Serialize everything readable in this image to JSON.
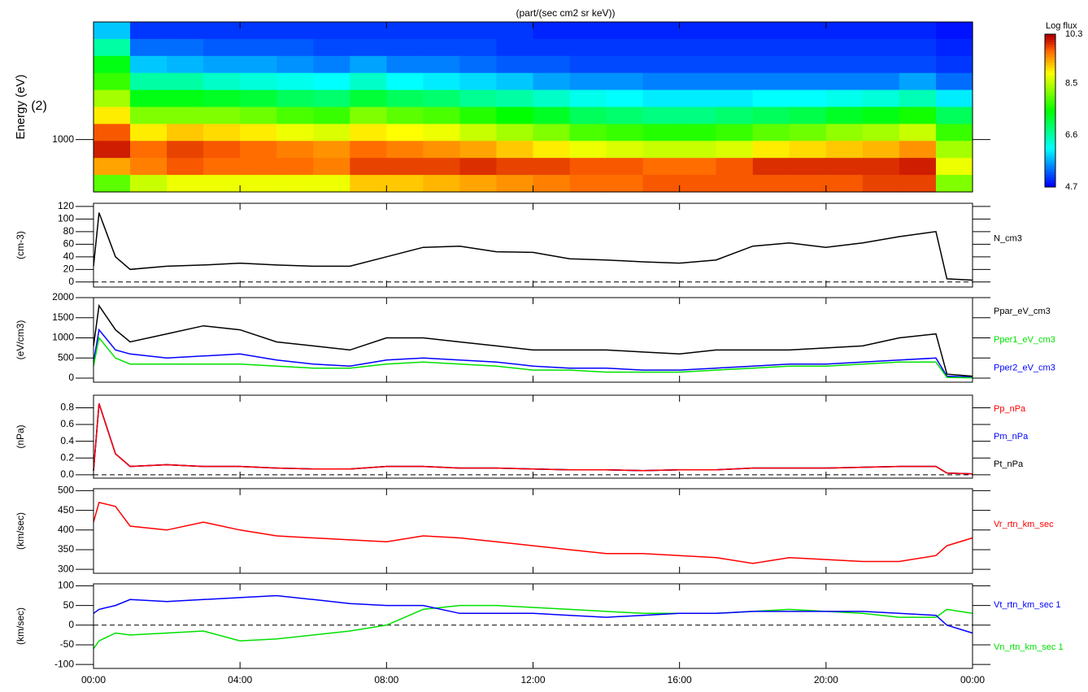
{
  "chart_data": [
    {
      "type": "heatmap",
      "title": "(part/(sec cm2 sr keV))",
      "ylabel": "Energy (eV)",
      "note": "(2)",
      "xlim": [
        0,
        24
      ],
      "ylim": [
        300,
        15000
      ],
      "log_y": true,
      "yticks": [
        1000
      ],
      "colorbar_title": "Log flux",
      "clim": [
        4.7,
        10.3
      ],
      "cticks": [
        4.7,
        6.6,
        8.5,
        10.3
      ],
      "z": [
        [
          5.8,
          5.0,
          5.0,
          5.0,
          5.0,
          5.0,
          5.0,
          5.0,
          5.0,
          5.0,
          5.0,
          5.0,
          4.9,
          4.9,
          4.9,
          4.9,
          4.9,
          4.9,
          4.9,
          4.9,
          4.9,
          4.9,
          4.9,
          4.8
        ],
        [
          6.6,
          5.3,
          5.3,
          5.2,
          5.2,
          5.2,
          5.1,
          5.1,
          5.1,
          5.1,
          5.1,
          5.0,
          5.0,
          5.0,
          5.0,
          5.0,
          5.0,
          5.0,
          5.0,
          5.0,
          5.0,
          5.0,
          5.0,
          4.9
        ],
        [
          7.4,
          5.8,
          5.7,
          5.6,
          5.6,
          5.5,
          5.4,
          5.6,
          5.4,
          5.4,
          5.3,
          5.2,
          5.2,
          5.1,
          5.1,
          5.1,
          5.1,
          5.1,
          5.1,
          5.1,
          5.1,
          5.1,
          5.1,
          5.0
        ],
        [
          7.8,
          6.6,
          6.6,
          6.4,
          6.3,
          6.2,
          6.1,
          6.4,
          6.1,
          6.0,
          5.9,
          5.8,
          5.6,
          5.5,
          5.5,
          5.4,
          5.4,
          5.4,
          5.4,
          5.4,
          5.4,
          5.4,
          5.6,
          5.3
        ],
        [
          8.4,
          7.4,
          7.4,
          7.3,
          7.2,
          7.0,
          6.9,
          7.2,
          7.0,
          6.9,
          6.7,
          6.6,
          6.4,
          6.2,
          6.1,
          6.0,
          6.0,
          6.0,
          6.1,
          6.1,
          6.2,
          6.3,
          6.5,
          6.0
        ],
        [
          9.0,
          8.2,
          8.2,
          8.2,
          8.1,
          7.9,
          7.8,
          8.2,
          8.0,
          7.9,
          7.7,
          7.5,
          7.3,
          7.0,
          6.9,
          6.8,
          6.8,
          6.9,
          7.0,
          7.1,
          7.3,
          7.4,
          7.6,
          7.0
        ],
        [
          9.8,
          9.0,
          9.2,
          9.1,
          9.0,
          8.8,
          8.7,
          9.0,
          8.9,
          8.8,
          8.6,
          8.4,
          8.2,
          7.9,
          7.8,
          7.7,
          7.7,
          7.8,
          8.0,
          8.1,
          8.3,
          8.4,
          8.6,
          7.8
        ],
        [
          10.1,
          9.7,
          9.9,
          9.8,
          9.7,
          9.6,
          9.5,
          9.7,
          9.6,
          9.5,
          9.4,
          9.2,
          9.0,
          8.8,
          8.7,
          8.6,
          8.6,
          8.7,
          9.0,
          9.1,
          9.2,
          9.3,
          9.5,
          8.4
        ],
        [
          9.4,
          9.6,
          9.8,
          9.7,
          9.7,
          9.7,
          9.6,
          9.9,
          9.9,
          9.9,
          10.0,
          9.9,
          9.9,
          9.8,
          9.8,
          9.7,
          9.7,
          9.8,
          10.0,
          10.0,
          10.0,
          10.0,
          10.1,
          8.8
        ],
        [
          8.0,
          8.6,
          8.8,
          8.8,
          8.8,
          8.8,
          8.8,
          9.2,
          9.2,
          9.3,
          9.4,
          9.5,
          9.6,
          9.7,
          9.7,
          9.8,
          9.8,
          9.8,
          9.8,
          9.8,
          9.8,
          9.9,
          9.9,
          8.2
        ]
      ]
    },
    {
      "type": "line",
      "ylabel": "(cm-3)",
      "xlim": [
        0,
        24
      ],
      "ylim": [
        -8,
        125
      ],
      "yticks": [
        0,
        20,
        40,
        60,
        80,
        100,
        120
      ],
      "hline": 0,
      "x": [
        0,
        0.15,
        0.6,
        1,
        2,
        3,
        4,
        5,
        6,
        7,
        8,
        9,
        10,
        11,
        12,
        13,
        14,
        15,
        16,
        17,
        18,
        19,
        20,
        21,
        22,
        23,
        23.3,
        24
      ],
      "series": [
        {
          "name": "N_cm3",
          "color": "#000000",
          "values": [
            25,
            110,
            40,
            20,
            25,
            27,
            30,
            27,
            25,
            25,
            40,
            55,
            57,
            48,
            47,
            37,
            35,
            32,
            30,
            35,
            57,
            62,
            55,
            62,
            72,
            80,
            5,
            3
          ]
        }
      ]
    },
    {
      "type": "line",
      "ylabel": "(eV/cm3)",
      "xlim": [
        0,
        24
      ],
      "ylim": [
        -100,
        2000
      ],
      "yticks": [
        0,
        500,
        1000,
        1500,
        2000
      ],
      "x": [
        0,
        0.15,
        0.6,
        1,
        2,
        3,
        4,
        5,
        6,
        7,
        8,
        9,
        10,
        11,
        12,
        13,
        14,
        15,
        16,
        17,
        18,
        19,
        20,
        21,
        22,
        23,
        23.3,
        24
      ],
      "series": [
        {
          "name": "Ppar_eV_cm3",
          "color": "#000000",
          "values": [
            800,
            1800,
            1200,
            900,
            1100,
            1300,
            1200,
            900,
            800,
            700,
            1000,
            1000,
            900,
            800,
            700,
            700,
            700,
            650,
            600,
            700,
            700,
            700,
            750,
            800,
            1000,
            1100,
            100,
            50
          ]
        },
        {
          "name": "Pper1_eV_cm3",
          "color": "#00e000",
          "values": [
            300,
            1000,
            500,
            350,
            350,
            350,
            350,
            300,
            250,
            250,
            350,
            400,
            350,
            300,
            200,
            200,
            150,
            150,
            150,
            200,
            250,
            300,
            300,
            350,
            400,
            400,
            20,
            10
          ]
        },
        {
          "name": "Pper2_eV_cm3",
          "color": "#0000ff",
          "values": [
            400,
            1200,
            700,
            600,
            500,
            550,
            600,
            450,
            350,
            300,
            450,
            500,
            450,
            400,
            300,
            250,
            250,
            200,
            200,
            250,
            300,
            350,
            350,
            400,
            450,
            500,
            50,
            30
          ]
        }
      ]
    },
    {
      "type": "line",
      "ylabel": "(nPa)",
      "xlim": [
        0,
        24
      ],
      "ylim": [
        -0.04,
        0.95
      ],
      "yticks": [
        {
          "value": 0,
          "label": "0.0"
        },
        0.2,
        0.4,
        0.6,
        0.8
      ],
      "hline": 0,
      "x": [
        0,
        0.15,
        0.6,
        1,
        2,
        3,
        4,
        5,
        6,
        7,
        8,
        9,
        10,
        11,
        12,
        13,
        14,
        15,
        16,
        17,
        18,
        19,
        20,
        21,
        22,
        23,
        23.3,
        24
      ],
      "series": [
        {
          "name": "Pp_nPa",
          "color": "#ff0000",
          "values": [
            0.05,
            0.85,
            0.25,
            0.1,
            0.12,
            0.1,
            0.1,
            0.08,
            0.07,
            0.07,
            0.1,
            0.1,
            0.08,
            0.08,
            0.07,
            0.06,
            0.06,
            0.05,
            0.06,
            0.06,
            0.08,
            0.08,
            0.08,
            0.09,
            0.1,
            0.1,
            0.02,
            0.01
          ]
        },
        {
          "name": "Pm_nPa",
          "color": "#0000ff",
          "values": [
            0.05,
            0.85,
            0.25,
            0.1,
            0.12,
            0.1,
            0.1,
            0.08,
            0.07,
            0.07,
            0.1,
            0.1,
            0.08,
            0.08,
            0.07,
            0.06,
            0.06,
            0.05,
            0.06,
            0.06,
            0.08,
            0.08,
            0.08,
            0.09,
            0.1,
            0.1,
            0.02,
            0.01
          ]
        },
        {
          "name": "Pt_nPa",
          "color": "#000000",
          "values": [
            0.05,
            0.85,
            0.25,
            0.1,
            0.12,
            0.1,
            0.1,
            0.08,
            0.07,
            0.07,
            0.1,
            0.1,
            0.08,
            0.08,
            0.07,
            0.06,
            0.06,
            0.05,
            0.06,
            0.06,
            0.08,
            0.08,
            0.08,
            0.09,
            0.1,
            0.1,
            0.02,
            0.01
          ]
        }
      ]
    },
    {
      "type": "line",
      "ylabel": "(km/sec)",
      "xlim": [
        0,
        24
      ],
      "ylim": [
        290,
        505
      ],
      "yticks": [
        300,
        350,
        400,
        450,
        500
      ],
      "x": [
        0,
        0.15,
        0.6,
        1,
        2,
        3,
        4,
        5,
        6,
        7,
        8,
        9,
        10,
        11,
        12,
        13,
        14,
        15,
        16,
        17,
        18,
        19,
        20,
        21,
        22,
        23,
        23.3,
        24
      ],
      "series": [
        {
          "name": "Vr_rtn_km_sec",
          "color": "#ff0000",
          "values": [
            420,
            470,
            460,
            410,
            400,
            420,
            400,
            385,
            380,
            375,
            370,
            385,
            380,
            370,
            360,
            350,
            340,
            340,
            335,
            330,
            315,
            330,
            325,
            320,
            320,
            335,
            360,
            380
          ]
        }
      ]
    },
    {
      "type": "line",
      "ylabel": "(km/sec)",
      "xlim": [
        0,
        24
      ],
      "ylim": [
        -110,
        105
      ],
      "yticks": [
        -100,
        -50,
        0,
        50,
        100
      ],
      "hline": 0,
      "xticks": [
        {
          "value": 0,
          "label": "00:00"
        },
        {
          "value": 4,
          "label": "04:00"
        },
        {
          "value": 8,
          "label": "08:00"
        },
        {
          "value": 12,
          "label": "12:00"
        },
        {
          "value": 16,
          "label": "16:00"
        },
        {
          "value": 20,
          "label": "20:00"
        },
        {
          "value": 24,
          "label": "00:00"
        }
      ],
      "x": [
        0,
        0.15,
        0.6,
        1,
        2,
        3,
        4,
        5,
        6,
        7,
        8,
        9,
        10,
        11,
        12,
        13,
        14,
        15,
        16,
        17,
        18,
        19,
        20,
        21,
        22,
        23,
        23.3,
        24
      ],
      "series": [
        {
          "name": "Vt_rtn_km_sec 1",
          "color": "#0000ff",
          "values": [
            30,
            40,
            50,
            65,
            60,
            65,
            70,
            75,
            65,
            55,
            50,
            50,
            30,
            30,
            30,
            25,
            20,
            25,
            30,
            30,
            35,
            35,
            35,
            35,
            30,
            25,
            0,
            -20
          ]
        },
        {
          "name": "Vn_rtn_km_sec 1",
          "color": "#00e000",
          "values": [
            -60,
            -40,
            -20,
            -25,
            -20,
            -15,
            -40,
            -35,
            -25,
            -15,
            0,
            40,
            50,
            50,
            45,
            40,
            35,
            30,
            30,
            30,
            35,
            40,
            35,
            30,
            20,
            20,
            40,
            30
          ]
        }
      ]
    }
  ]
}
